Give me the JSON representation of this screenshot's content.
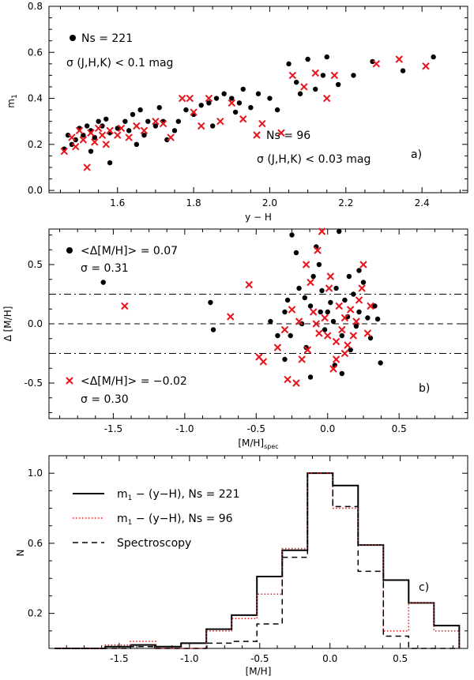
{
  "chart_data": [
    {
      "type": "scatter",
      "panel_label": "a)",
      "xlabel": "y − H",
      "ylabel": "m1",
      "ylabel_main": "m",
      "ylabel_sub": "1",
      "xlim": [
        1.42,
        2.52
      ],
      "ylim": [
        -0.01,
        0.8
      ],
      "xticks": [
        1.6,
        1.8,
        2.0,
        2.2,
        2.4
      ],
      "yticks": [
        0.0,
        0.2,
        0.4,
        0.6,
        0.8
      ],
      "xtick_labels": [
        "1.6",
        "1.8",
        "2.0",
        "2.2",
        "2.4"
      ],
      "ytick_labels": [
        "0.0",
        "0.2",
        "0.4",
        "0.6",
        "0.8"
      ],
      "legend": [
        {
          "marker": "dot",
          "text": "Ns = 221",
          "line2": "σ (J,H,K) < 0.1 mag"
        },
        {
          "marker": "cross",
          "text": "Ns = 96",
          "line2": "σ (J,H,K) < 0.03 mag"
        }
      ],
      "series": [
        {
          "name": "Ns = 221",
          "marker": "dot",
          "color": "#000000",
          "points": [
            [
              1.47,
              0.24
            ],
            [
              1.48,
              0.2
            ],
            [
              1.49,
              0.22
            ],
            [
              1.5,
              0.27
            ],
            [
              1.51,
              0.24
            ],
            [
              1.52,
              0.28
            ],
            [
              1.53,
              0.26
            ],
            [
              1.54,
              0.23
            ],
            [
              1.55,
              0.3
            ],
            [
              1.56,
              0.28
            ],
            [
              1.57,
              0.31
            ],
            [
              1.58,
              0.25
            ],
            [
              1.6,
              0.27
            ],
            [
              1.62,
              0.3
            ],
            [
              1.63,
              0.26
            ],
            [
              1.64,
              0.33
            ],
            [
              1.66,
              0.35
            ],
            [
              1.68,
              0.3
            ],
            [
              1.7,
              0.28
            ],
            [
              1.72,
              0.3
            ],
            [
              1.73,
              0.22
            ],
            [
              1.75,
              0.26
            ],
            [
              1.78,
              0.35
            ],
            [
              1.8,
              0.33
            ],
            [
              1.82,
              0.37
            ],
            [
              1.84,
              0.38
            ],
            [
              1.86,
              0.4
            ],
            [
              1.88,
              0.42
            ],
            [
              1.9,
              0.4
            ],
            [
              1.92,
              0.38
            ],
            [
              1.93,
              0.44
            ],
            [
              1.95,
              0.36
            ],
            [
              1.97,
              0.42
            ],
            [
              2.0,
              0.4
            ],
            [
              2.02,
              0.35
            ],
            [
              2.05,
              0.55
            ],
            [
              2.07,
              0.47
            ],
            [
              2.08,
              0.42
            ],
            [
              2.1,
              0.57
            ],
            [
              2.12,
              0.44
            ],
            [
              2.14,
              0.5
            ],
            [
              2.15,
              0.58
            ],
            [
              2.18,
              0.46
            ],
            [
              2.22,
              0.5
            ],
            [
              2.27,
              0.56
            ],
            [
              2.35,
              0.52
            ],
            [
              2.43,
              0.58
            ],
            [
              1.46,
              0.18
            ],
            [
              1.53,
              0.17
            ],
            [
              1.58,
              0.12
            ],
            [
              1.65,
              0.2
            ],
            [
              1.67,
              0.24
            ],
            [
              1.71,
              0.36
            ],
            [
              1.76,
              0.3
            ],
            [
              1.85,
              0.28
            ],
            [
              1.91,
              0.34
            ]
          ]
        },
        {
          "name": "Ns = 96",
          "marker": "cross",
          "color": "#e8141c",
          "points": [
            [
              1.46,
              0.17
            ],
            [
              1.48,
              0.23
            ],
            [
              1.49,
              0.19
            ],
            [
              1.5,
              0.26
            ],
            [
              1.51,
              0.22
            ],
            [
              1.52,
              0.1
            ],
            [
              1.53,
              0.25
            ],
            [
              1.54,
              0.21
            ],
            [
              1.55,
              0.27
            ],
            [
              1.56,
              0.24
            ],
            [
              1.57,
              0.2
            ],
            [
              1.58,
              0.26
            ],
            [
              1.6,
              0.24
            ],
            [
              1.61,
              0.27
            ],
            [
              1.63,
              0.23
            ],
            [
              1.65,
              0.28
            ],
            [
              1.67,
              0.26
            ],
            [
              1.7,
              0.3
            ],
            [
              1.72,
              0.29
            ],
            [
              1.74,
              0.23
            ],
            [
              1.77,
              0.4
            ],
            [
              1.79,
              0.4
            ],
            [
              1.8,
              0.34
            ],
            [
              1.82,
              0.28
            ],
            [
              1.84,
              0.4
            ],
            [
              1.87,
              0.3
            ],
            [
              1.9,
              0.38
            ],
            [
              1.93,
              0.31
            ],
            [
              1.98,
              0.29
            ],
            [
              2.03,
              0.25
            ],
            [
              2.06,
              0.5
            ],
            [
              2.09,
              0.45
            ],
            [
              2.12,
              0.51
            ],
            [
              2.15,
              0.4
            ],
            [
              2.17,
              0.5
            ],
            [
              2.28,
              0.55
            ],
            [
              2.34,
              0.57
            ],
            [
              2.41,
              0.54
            ]
          ]
        }
      ]
    },
    {
      "type": "scatter",
      "panel_label": "b)",
      "xlabel": "[M/H]spec",
      "xlabel_main": "[M/H]",
      "xlabel_sub": "spec",
      "ylabel": "Δ [M/H]",
      "xlim": [
        -1.95,
        0.98
      ],
      "ylim": [
        -0.8,
        0.8
      ],
      "xticks": [
        -1.5,
        -1.0,
        -0.5,
        0.0,
        0.5
      ],
      "yticks": [
        -0.5,
        0.0,
        0.5
      ],
      "xtick_labels": [
        "-1.5",
        "-1.0",
        "-0.5",
        "0.0",
        "0.5"
      ],
      "ytick_labels": [
        "-0.5",
        "0.0",
        "0.5"
      ],
      "hlines": [
        {
          "y": 0.25,
          "style": "dashdot"
        },
        {
          "y": 0.0,
          "style": "dashed"
        },
        {
          "y": -0.25,
          "style": "dashdot"
        }
      ],
      "legend": [
        {
          "marker": "dot",
          "text": "<Δ[M/H]> = 0.07",
          "line2": "σ = 0.31"
        },
        {
          "marker": "cross",
          "text": "<Δ[M/H]> = −0.02",
          "line2": "σ = 0.30"
        }
      ],
      "series": [
        {
          "name": "dots",
          "marker": "dot",
          "color": "#000000",
          "points": [
            [
              -1.57,
              0.35
            ],
            [
              -0.82,
              0.18
            ],
            [
              -0.8,
              -0.05
            ],
            [
              -0.4,
              0.02
            ],
            [
              -0.35,
              -0.1
            ],
            [
              -0.3,
              0.1
            ],
            [
              -0.28,
              0.2
            ],
            [
              -0.25,
              0.75
            ],
            [
              -0.22,
              0.6
            ],
            [
              -0.2,
              0.3
            ],
            [
              -0.18,
              0.0
            ],
            [
              -0.15,
              -0.2
            ],
            [
              -0.12,
              0.15
            ],
            [
              -0.1,
              0.4
            ],
            [
              -0.08,
              0.65
            ],
            [
              -0.06,
              0.5
            ],
            [
              -0.04,
              0.28
            ],
            [
              -0.02,
              -0.05
            ],
            [
              0.0,
              0.1
            ],
            [
              0.02,
              0.18
            ],
            [
              0.04,
              0.02
            ],
            [
              0.06,
              0.3
            ],
            [
              0.08,
              0.78
            ],
            [
              0.1,
              -0.1
            ],
            [
              0.12,
              0.2
            ],
            [
              0.14,
              0.06
            ],
            [
              0.16,
              -0.22
            ],
            [
              0.18,
              0.25
            ],
            [
              0.2,
              -0.02
            ],
            [
              0.22,
              0.1
            ],
            [
              0.25,
              0.35
            ],
            [
              0.28,
              0.05
            ],
            [
              0.3,
              -0.12
            ],
            [
              0.33,
              0.15
            ],
            [
              0.35,
              0.04
            ],
            [
              0.37,
              -0.33
            ],
            [
              -0.26,
              -0.1
            ],
            [
              -0.16,
              0.22
            ],
            [
              0.05,
              -0.35
            ],
            [
              0.1,
              -0.42
            ],
            [
              -0.3,
              -0.3
            ],
            [
              -0.05,
              0.1
            ],
            [
              0.15,
              0.4
            ],
            [
              0.22,
              0.45
            ],
            [
              -0.12,
              -0.45
            ]
          ]
        },
        {
          "name": "crosses",
          "marker": "cross",
          "color": "#e8141c",
          "points": [
            [
              -1.42,
              0.15
            ],
            [
              -0.68,
              0.06
            ],
            [
              -0.55,
              0.33
            ],
            [
              -0.48,
              -0.28
            ],
            [
              -0.45,
              -0.32
            ],
            [
              -0.35,
              -0.2
            ],
            [
              -0.3,
              -0.05
            ],
            [
              -0.28,
              -0.47
            ],
            [
              -0.25,
              0.12
            ],
            [
              -0.22,
              -0.5
            ],
            [
              -0.2,
              0.02
            ],
            [
              -0.18,
              -0.3
            ],
            [
              -0.15,
              0.5
            ],
            [
              -0.12,
              0.35
            ],
            [
              -0.1,
              0.1
            ],
            [
              -0.08,
              0.0
            ],
            [
              -0.06,
              -0.08
            ],
            [
              -0.04,
              0.78
            ],
            [
              -0.02,
              0.05
            ],
            [
              0.0,
              -0.1
            ],
            [
              0.02,
              0.4
            ],
            [
              0.04,
              -0.38
            ],
            [
              0.06,
              -0.15
            ],
            [
              0.08,
              0.15
            ],
            [
              0.1,
              -0.05
            ],
            [
              0.12,
              0.05
            ],
            [
              0.14,
              -0.18
            ],
            [
              0.16,
              0.12
            ],
            [
              0.18,
              -0.1
            ],
            [
              0.2,
              0.02
            ],
            [
              0.22,
              0.2
            ],
            [
              0.25,
              0.5
            ],
            [
              0.28,
              -0.08
            ],
            [
              0.3,
              0.15
            ],
            [
              -0.07,
              0.62
            ],
            [
              0.01,
              0.3
            ],
            [
              0.06,
              -0.3
            ],
            [
              -0.14,
              -0.22
            ],
            [
              0.12,
              -0.25
            ],
            [
              0.24,
              0.3
            ]
          ]
        }
      ]
    },
    {
      "type": "step",
      "panel_label": "c)",
      "xlabel": "[M/H]",
      "ylabel": "N",
      "xlim": [
        -2.0,
        0.98
      ],
      "ylim": [
        0.0,
        1.1
      ],
      "xticks": [
        -1.5,
        -1.0,
        -0.5,
        0.0,
        0.5
      ],
      "yticks": [
        0.2,
        0.6,
        1.0
      ],
      "xtick_labels": [
        "-1.5",
        "-1.0",
        "-0.5",
        "0.0",
        "0.5"
      ],
      "ytick_labels": [
        "0.2",
        "0.6",
        "1.0"
      ],
      "bin_edges": [
        -1.96,
        -1.78,
        -1.6,
        -1.42,
        -1.24,
        -1.06,
        -0.88,
        -0.7,
        -0.52,
        -0.34,
        -0.16,
        0.02,
        0.2,
        0.38,
        0.56,
        0.74,
        0.92
      ],
      "legend": [
        {
          "style": "solid",
          "color": "#000000",
          "text": "m1 − (y−H), Ns = 221",
          "main": "m",
          "sub": "1",
          "rest": " − (y−H), Ns = 221"
        },
        {
          "style": "dotted",
          "color": "#e8141c",
          "text": "m1 − (y−H), Ns = 96",
          "main": "m",
          "sub": "1",
          "rest": " − (y−H), Ns = 96"
        },
        {
          "style": "dashed",
          "color": "#000000",
          "text": "Spectroscopy"
        }
      ],
      "series": [
        {
          "name": "m1 − (y−H), Ns = 221",
          "style": "solid",
          "color": "#000000",
          "values": [
            0,
            0,
            0.01,
            0.02,
            0.01,
            0.03,
            0.11,
            0.19,
            0.41,
            0.56,
            1.0,
            0.93,
            0.59,
            0.39,
            0.26,
            0.13,
            0
          ]
        },
        {
          "name": "m1 − (y−H), Ns = 96",
          "style": "dotted",
          "color": "#e8141c",
          "values": [
            0,
            0,
            0.02,
            0.04,
            0.0,
            0.0,
            0.1,
            0.17,
            0.31,
            0.57,
            1.0,
            0.8,
            0.59,
            0.1,
            0.26,
            0.1,
            0
          ]
        },
        {
          "name": "Spectroscopy",
          "style": "dashed",
          "color": "#000000",
          "values": [
            0,
            0,
            0,
            0.01,
            0,
            0,
            0.03,
            0.04,
            0.14,
            0.52,
            1.0,
            0.81,
            0.44,
            0.07,
            0,
            0,
            0
          ]
        }
      ]
    }
  ]
}
